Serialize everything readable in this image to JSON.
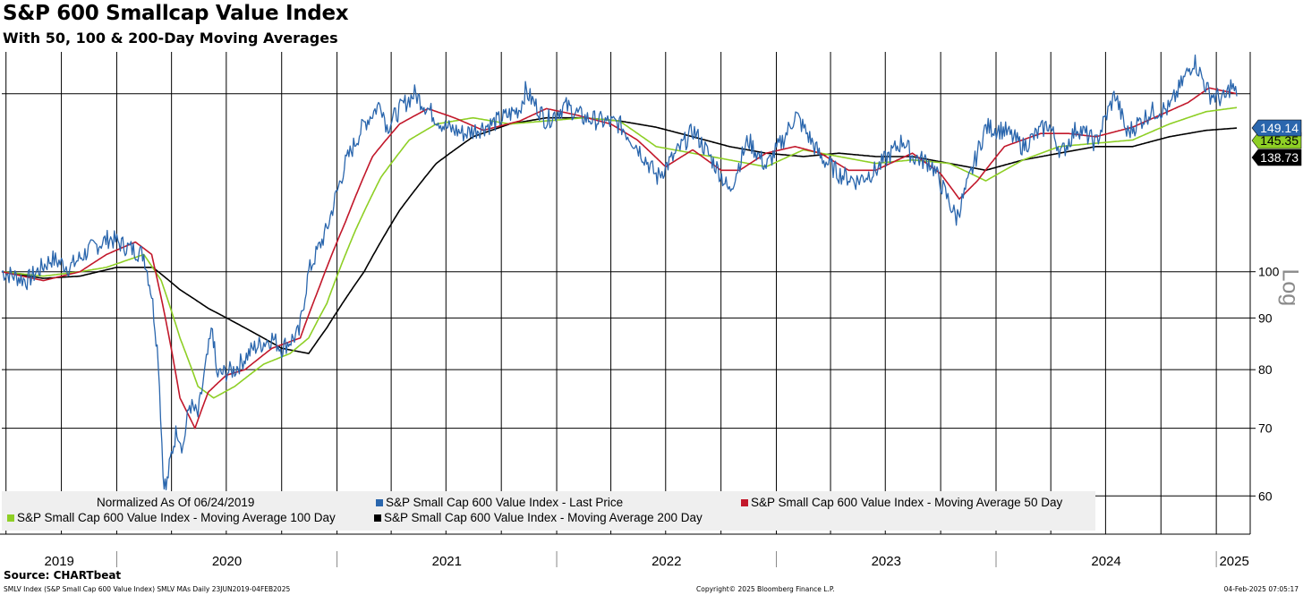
{
  "title": "S&P 600 Smallcap Value Index",
  "subtitle": "With 50, 100 & 200-Day Moving Averages",
  "source": "Source: CHARTbeat",
  "footer": {
    "left": "SMLV Index (S&P Small Cap 600 Value Index) SMLV MAs  Daily 23JUN2019-04FEB2025",
    "center": "Copyright© 2025 Bloomberg Finance L.P.",
    "right": "04-Feb-2025 07:05:17"
  },
  "scale_label": "Log",
  "legend": {
    "normalized": "Normalized As Of 06/24/2019",
    "last_price": "S&P Small Cap 600 Value Index - Last Price",
    "ma50": "S&P Small Cap 600 Value Index - Moving Average 50 Day",
    "ma100": "S&P Small Cap 600 Value Index - Moving Average 100 Day",
    "ma200": "S&P Small Cap 600 Value Index - Moving Average 200 Day"
  },
  "colors": {
    "last_price": "#2a66ad",
    "ma50": "#c2182b",
    "ma100": "#8ecf25",
    "ma200": "#000000",
    "grid": "#000000",
    "legend_bg": "#efefef"
  },
  "chart_data": {
    "type": "line",
    "scale": "log",
    "ylim": [
      55,
      165
    ],
    "xlim": [
      "2019-06-24",
      "2025-02-04"
    ],
    "y_ticks": [
      60,
      70,
      80,
      90,
      100
    ],
    "x_year_labels": [
      "2019",
      "2020",
      "2021",
      "2022",
      "2023",
      "2024",
      "2025"
    ],
    "last_values": {
      "last_price": "149.14",
      "ma100": "145.35",
      "ma200": "138.73"
    },
    "series": [
      {
        "name": "S&P Small Cap 600 Value Index - Last Price",
        "key": "last_price",
        "points": [
          [
            "2019-06-24",
            100
          ],
          [
            "2019-08-05",
            98
          ],
          [
            "2019-09-15",
            103
          ],
          [
            "2019-10-15",
            101
          ],
          [
            "2019-11-15",
            105
          ],
          [
            "2019-12-20",
            108
          ],
          [
            "2020-01-15",
            106
          ],
          [
            "2020-02-15",
            104
          ],
          [
            "2020-02-28",
            95
          ],
          [
            "2020-03-10",
            82
          ],
          [
            "2020-03-18",
            63
          ],
          [
            "2020-03-23",
            61
          ],
          [
            "2020-04-01",
            66
          ],
          [
            "2020-04-10",
            70
          ],
          [
            "2020-04-20",
            67
          ],
          [
            "2020-05-01",
            74
          ],
          [
            "2020-05-15",
            72
          ],
          [
            "2020-06-08",
            88
          ],
          [
            "2020-06-15",
            79
          ],
          [
            "2020-07-15",
            80
          ],
          [
            "2020-08-15",
            84
          ],
          [
            "2020-09-15",
            86
          ],
          [
            "2020-10-01",
            84
          ],
          [
            "2020-10-30",
            87
          ],
          [
            "2020-11-15",
            100
          ],
          [
            "2020-12-15",
            110
          ],
          [
            "2021-01-15",
            128
          ],
          [
            "2021-02-15",
            140
          ],
          [
            "2021-03-15",
            147
          ],
          [
            "2021-03-25",
            139
          ],
          [
            "2021-04-20",
            146
          ],
          [
            "2021-05-10",
            150
          ],
          [
            "2021-06-10",
            143
          ],
          [
            "2021-06-30",
            139
          ],
          [
            "2021-08-01",
            137
          ],
          [
            "2021-09-15",
            140
          ],
          [
            "2021-11-01",
            145
          ],
          [
            "2021-11-10",
            151
          ],
          [
            "2021-12-15",
            141
          ],
          [
            "2022-01-15",
            146
          ],
          [
            "2022-02-15",
            142
          ],
          [
            "2022-03-15",
            141
          ],
          [
            "2022-04-15",
            140
          ],
          [
            "2022-05-15",
            133
          ],
          [
            "2022-06-17",
            124
          ],
          [
            "2022-07-15",
            130
          ],
          [
            "2022-08-16",
            138
          ],
          [
            "2022-09-30",
            125
          ],
          [
            "2022-10-15",
            120
          ],
          [
            "2022-11-15",
            135
          ],
          [
            "2022-12-15",
            127
          ],
          [
            "2023-01-15",
            136
          ],
          [
            "2023-02-02",
            143
          ],
          [
            "2023-03-15",
            130
          ],
          [
            "2023-04-15",
            125
          ],
          [
            "2023-05-15",
            123
          ],
          [
            "2023-06-15",
            126
          ],
          [
            "2023-07-31",
            135
          ],
          [
            "2023-08-15",
            130
          ],
          [
            "2023-09-15",
            128
          ],
          [
            "2023-10-27",
            113
          ],
          [
            "2023-11-15",
            122
          ],
          [
            "2023-12-15",
            139
          ],
          [
            "2024-01-15",
            138
          ],
          [
            "2024-02-15",
            133
          ],
          [
            "2024-03-28",
            140
          ],
          [
            "2024-04-19",
            131
          ],
          [
            "2024-05-15",
            139
          ],
          [
            "2024-06-15",
            134
          ],
          [
            "2024-07-17",
            150
          ],
          [
            "2024-08-05",
            137
          ],
          [
            "2024-09-15",
            144
          ],
          [
            "2024-10-15",
            145
          ],
          [
            "2024-11-25",
            162
          ],
          [
            "2024-12-20",
            150
          ],
          [
            "2025-01-15",
            148
          ],
          [
            "2025-01-25",
            153
          ],
          [
            "2025-02-04",
            149.14
          ]
        ]
      },
      {
        "name": "S&P Small Cap 600 Value Index - Moving Average 50 Day",
        "key": "ma50",
        "points": [
          [
            "2019-06-24",
            100
          ],
          [
            "2019-09-01",
            98
          ],
          [
            "2019-11-01",
            100
          ],
          [
            "2019-12-15",
            104
          ],
          [
            "2020-02-01",
            107
          ],
          [
            "2020-02-28",
            104
          ],
          [
            "2020-03-25",
            88
          ],
          [
            "2020-04-15",
            75
          ],
          [
            "2020-05-10",
            70
          ],
          [
            "2020-06-01",
            76
          ],
          [
            "2020-07-01",
            79
          ],
          [
            "2020-08-01",
            80
          ],
          [
            "2020-09-15",
            84
          ],
          [
            "2020-11-01",
            86
          ],
          [
            "2020-12-01",
            96
          ],
          [
            "2021-01-15",
            112
          ],
          [
            "2021-03-01",
            130
          ],
          [
            "2021-04-15",
            140
          ],
          [
            "2021-06-01",
            145
          ],
          [
            "2021-07-15",
            142
          ],
          [
            "2021-09-01",
            138
          ],
          [
            "2021-11-01",
            141
          ],
          [
            "2021-12-15",
            145
          ],
          [
            "2022-02-01",
            143
          ],
          [
            "2022-04-01",
            140
          ],
          [
            "2022-05-15",
            135
          ],
          [
            "2022-07-01",
            127
          ],
          [
            "2022-08-15",
            132
          ],
          [
            "2022-10-01",
            126
          ],
          [
            "2022-11-01",
            126
          ],
          [
            "2022-12-15",
            131
          ],
          [
            "2023-02-01",
            133
          ],
          [
            "2023-03-15",
            131
          ],
          [
            "2023-05-01",
            126
          ],
          [
            "2023-06-15",
            126
          ],
          [
            "2023-08-15",
            131
          ],
          [
            "2023-10-01",
            125
          ],
          [
            "2023-11-01",
            118
          ],
          [
            "2023-12-01",
            123
          ],
          [
            "2024-01-15",
            133
          ],
          [
            "2024-03-15",
            137
          ],
          [
            "2024-05-01",
            137
          ],
          [
            "2024-06-15",
            136
          ],
          [
            "2024-08-15",
            139
          ],
          [
            "2024-10-01",
            143
          ],
          [
            "2024-11-15",
            147
          ],
          [
            "2024-12-20",
            152
          ],
          [
            "2025-02-04",
            150
          ]
        ]
      },
      {
        "name": "S&P Small Cap 600 Value Index - Moving Average 100 Day",
        "key": "ma100",
        "points": [
          [
            "2019-06-24",
            100
          ],
          [
            "2019-09-01",
            99
          ],
          [
            "2019-11-01",
            100
          ],
          [
            "2019-12-15",
            101
          ],
          [
            "2020-02-15",
            104
          ],
          [
            "2020-03-15",
            98
          ],
          [
            "2020-04-15",
            86
          ],
          [
            "2020-05-15",
            77
          ],
          [
            "2020-06-10",
            75
          ],
          [
            "2020-07-15",
            77
          ],
          [
            "2020-09-01",
            81
          ],
          [
            "2020-10-15",
            83
          ],
          [
            "2020-11-15",
            86
          ],
          [
            "2020-12-15",
            93
          ],
          [
            "2021-02-01",
            110
          ],
          [
            "2021-03-15",
            124
          ],
          [
            "2021-05-01",
            135
          ],
          [
            "2021-06-15",
            140
          ],
          [
            "2021-08-15",
            142
          ],
          [
            "2021-10-15",
            140
          ],
          [
            "2021-12-15",
            141
          ],
          [
            "2022-02-15",
            142
          ],
          [
            "2022-04-15",
            141
          ],
          [
            "2022-06-15",
            133
          ],
          [
            "2022-08-15",
            131
          ],
          [
            "2022-10-15",
            129
          ],
          [
            "2022-12-15",
            127
          ],
          [
            "2023-02-15",
            132
          ],
          [
            "2023-04-15",
            130
          ],
          [
            "2023-06-15",
            128
          ],
          [
            "2023-08-15",
            129
          ],
          [
            "2023-10-15",
            128
          ],
          [
            "2023-12-15",
            123
          ],
          [
            "2024-02-15",
            129
          ],
          [
            "2024-04-15",
            133
          ],
          [
            "2024-06-15",
            134
          ],
          [
            "2024-08-15",
            135
          ],
          [
            "2024-10-15",
            140
          ],
          [
            "2024-12-15",
            144
          ],
          [
            "2025-02-04",
            145.35
          ]
        ]
      },
      {
        "name": "S&P Small Cap 600 Value Index - Moving Average 200 Day",
        "key": "ma200",
        "points": [
          [
            "2019-06-24",
            100
          ],
          [
            "2019-09-01",
            98.5
          ],
          [
            "2019-11-01",
            99
          ],
          [
            "2020-01-01",
            101
          ],
          [
            "2020-03-01",
            101
          ],
          [
            "2020-04-15",
            96
          ],
          [
            "2020-06-01",
            92
          ],
          [
            "2020-08-01",
            88
          ],
          [
            "2020-10-01",
            84
          ],
          [
            "2020-11-15",
            83
          ],
          [
            "2020-12-15",
            88
          ],
          [
            "2021-02-15",
            100
          ],
          [
            "2021-04-15",
            115
          ],
          [
            "2021-06-15",
            128
          ],
          [
            "2021-08-15",
            136
          ],
          [
            "2021-10-15",
            140
          ],
          [
            "2021-12-15",
            142
          ],
          [
            "2022-02-15",
            142
          ],
          [
            "2022-04-15",
            141
          ],
          [
            "2022-06-15",
            139
          ],
          [
            "2022-08-15",
            136
          ],
          [
            "2022-10-15",
            133
          ],
          [
            "2022-12-15",
            131
          ],
          [
            "2023-02-15",
            130
          ],
          [
            "2023-04-15",
            131
          ],
          [
            "2023-06-15",
            130
          ],
          [
            "2023-08-15",
            130
          ],
          [
            "2023-10-15",
            128
          ],
          [
            "2023-12-15",
            126
          ],
          [
            "2024-02-15",
            129
          ],
          [
            "2024-04-15",
            131
          ],
          [
            "2024-06-15",
            133
          ],
          [
            "2024-08-15",
            133
          ],
          [
            "2024-10-15",
            136
          ],
          [
            "2024-12-15",
            138
          ],
          [
            "2025-02-04",
            138.73
          ]
        ]
      }
    ]
  }
}
